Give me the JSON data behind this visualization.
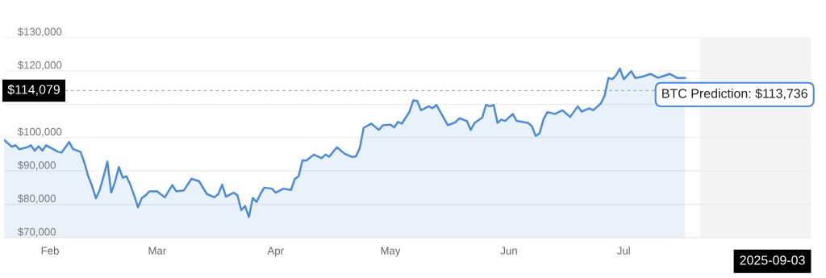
{
  "chart_data": {
    "type": "area",
    "x": [
      "2025-01-20",
      "2025-01-22",
      "2025-01-23",
      "2025-01-24",
      "2025-01-26",
      "2025-01-27",
      "2025-01-28",
      "2025-01-29",
      "2025-01-30",
      "2025-01-31",
      "2025-02-03",
      "2025-02-04",
      "2025-02-06",
      "2025-02-07",
      "2025-02-09",
      "2025-02-10",
      "2025-02-11",
      "2025-02-12",
      "2025-02-13",
      "2025-02-14",
      "2025-02-15",
      "2025-02-16",
      "2025-02-17",
      "2025-02-18",
      "2025-02-19",
      "2025-02-20",
      "2025-02-21",
      "2025-02-22",
      "2025-02-23",
      "2025-02-24",
      "2025-02-25",
      "2025-02-26",
      "2025-02-27",
      "2025-03-01",
      "2025-03-03",
      "2025-03-05",
      "2025-03-06",
      "2025-03-08",
      "2025-03-10",
      "2025-03-12",
      "2025-03-14",
      "2025-03-16",
      "2025-03-17",
      "2025-03-18",
      "2025-03-19",
      "2025-03-21",
      "2025-03-22",
      "2025-03-23",
      "2025-03-24",
      "2025-03-25",
      "2025-03-26",
      "2025-03-27",
      "2025-03-28",
      "2025-03-29",
      "2025-03-31",
      "2025-04-01",
      "2025-04-03",
      "2025-04-05",
      "2025-04-06",
      "2025-04-07",
      "2025-04-08",
      "2025-04-09",
      "2025-04-11",
      "2025-04-13",
      "2025-04-14",
      "2025-04-15",
      "2025-04-17",
      "2025-04-19",
      "2025-04-21",
      "2025-04-22",
      "2025-04-23",
      "2025-04-24",
      "2025-04-26",
      "2025-04-28",
      "2025-04-29",
      "2025-05-01",
      "2025-05-02",
      "2025-05-03",
      "2025-05-04",
      "2025-05-06",
      "2025-05-07",
      "2025-05-08",
      "2025-05-09",
      "2025-05-10",
      "2025-05-11",
      "2025-05-12",
      "2025-05-13",
      "2025-05-14",
      "2025-05-16",
      "2025-05-18",
      "2025-05-19",
      "2025-05-21",
      "2025-05-22",
      "2025-05-23",
      "2025-05-25",
      "2025-05-26",
      "2025-05-27",
      "2025-05-28",
      "2025-05-29",
      "2025-05-30",
      "2025-05-31",
      "2025-06-02",
      "2025-06-03",
      "2025-06-06",
      "2025-06-07",
      "2025-06-08",
      "2025-06-09",
      "2025-06-10",
      "2025-06-11",
      "2025-06-12",
      "2025-06-13",
      "2025-06-15",
      "2025-06-17",
      "2025-06-19",
      "2025-06-20",
      "2025-06-22",
      "2025-06-23",
      "2025-06-25",
      "2025-06-26",
      "2025-06-27",
      "2025-06-28",
      "2025-06-29",
      "2025-06-30",
      "2025-07-01",
      "2025-07-02",
      "2025-07-03",
      "2025-07-04",
      "2025-07-06",
      "2025-07-08",
      "2025-07-10",
      "2025-07-11",
      "2025-07-13",
      "2025-07-15",
      "2025-07-17"
    ],
    "series": [
      {
        "color": "#4a8bdc",
        "values": [
          99300,
          97300,
          97700,
          96500,
          97100,
          97700,
          96100,
          97400,
          96100,
          97700,
          95800,
          95500,
          98700,
          96600,
          95700,
          92400,
          88400,
          85500,
          81800,
          84300,
          88400,
          92800,
          83500,
          86800,
          91200,
          88000,
          88400,
          85900,
          82700,
          79100,
          81900,
          82700,
          83900,
          83900,
          82100,
          85800,
          83900,
          84200,
          87700,
          86900,
          83100,
          82100,
          83100,
          85900,
          82300,
          83500,
          82700,
          78300,
          79500,
          76200,
          81900,
          80700,
          83100,
          85000,
          84700,
          83500,
          84700,
          84300,
          87600,
          88400,
          93200,
          93100,
          94900,
          93800,
          94900,
          94300,
          97100,
          95200,
          94200,
          94400,
          96900,
          102900,
          104200,
          102300,
          103700,
          103900,
          103100,
          104700,
          104200,
          107800,
          111200,
          111000,
          108200,
          108800,
          109400,
          108800,
          109800,
          107800,
          103700,
          104600,
          105800,
          105000,
          102300,
          104400,
          106000,
          109800,
          109400,
          109800,
          104400,
          105400,
          105000,
          107100,
          105000,
          104400,
          103400,
          100500,
          101300,
          105400,
          107600,
          107400,
          107100,
          108200,
          106200,
          109400,
          107800,
          108800,
          108200,
          110200,
          112600,
          117900,
          117500,
          118700,
          120700,
          117500,
          118700,
          119900,
          117900,
          118300,
          119100,
          117900,
          118300,
          119100,
          117900,
          117900
        ]
      }
    ],
    "xlim": [
      "2025-01-20",
      "2025-08-19"
    ],
    "xticks": [
      {
        "value": "2025-02-01",
        "label": "Feb"
      },
      {
        "value": "2025-03-01",
        "label": "Mar"
      },
      {
        "value": "2025-04-01",
        "label": "Apr"
      },
      {
        "value": "2025-05-01",
        "label": "May"
      },
      {
        "value": "2025-06-01",
        "label": "Jun"
      },
      {
        "value": "2025-07-01",
        "label": "Jul"
      }
    ],
    "ylim": [
      70000,
      130000
    ],
    "yticks": [
      {
        "value": 70000,
        "label": "$70,000"
      },
      {
        "value": 80000,
        "label": "$80,000"
      },
      {
        "value": 90000,
        "label": "$90,000"
      },
      {
        "value": 100000,
        "label": "$100,000"
      },
      {
        "value": 110000,
        "label": null
      },
      {
        "value": 120000,
        "label": "$120,000"
      },
      {
        "value": 130000,
        "label": "$130,000"
      }
    ],
    "grid": "y",
    "ref_lines": [
      {
        "axis": "y",
        "value": 114079,
        "label": "$114,079",
        "color": "#aaaaaa",
        "line_style": "dashed"
      }
    ],
    "bands": [
      {
        "axis": "x",
        "from": "2025-07-21",
        "to": "2025-08-19",
        "color": "#f4f4f4"
      }
    ],
    "annotations": [
      "BTC Prediction: $113,736",
      "2025-09-03"
    ]
  }
}
